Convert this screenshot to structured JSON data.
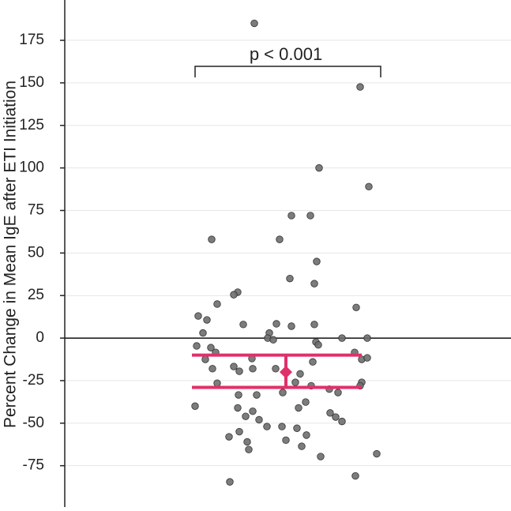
{
  "chart_data": {
    "type": "scatter",
    "y_label": "Percent Change in Mean IgE after ETI Initiation",
    "annotation": "p < 0.001",
    "x": [
      240,
      374,
      385,
      322,
      287,
      311,
      186,
      272,
      319,
      285,
      316,
      219,
      214,
      193,
      369,
      169,
      180,
      226,
      268,
      316,
      287,
      175,
      259,
      257,
      264,
      351,
      383,
      318,
      321,
      167,
      185,
      191,
      367,
      178,
      376,
      383,
      237,
      187,
      214,
      238,
      267,
      314,
      221,
      298,
      193,
      292,
      312,
      376,
      374,
      335,
      346,
      276,
      220,
      243,
      305,
      219,
      296,
      165,
      238,
      229,
      336,
      343,
      246,
      351,
      256,
      275,
      221,
      294,
      306,
      208,
      280,
      231,
      300,
      233,
      324,
      395,
      209,
      368
    ],
    "values": [
      185,
      147.6,
      89,
      100,
      72,
      72,
      58,
      58,
      45,
      35,
      32,
      27,
      25.5,
      20,
      18,
      13,
      10.7,
      8,
      8.4,
      8,
      7,
      3,
      3,
      0,
      -1,
      0,
      0,
      -2.3,
      -4,
      -4.6,
      -5.6,
      -8.4,
      -8.4,
      -12.5,
      -12.5,
      -11.6,
      -12,
      -18,
      -16.7,
      -18,
      -18,
      -14,
      -19.5,
      -21,
      -26.5,
      -26,
      -28,
      -26,
      -28,
      -30,
      -32,
      -32,
      -33.4,
      -33.4,
      -37.6,
      -41,
      -41,
      -40,
      -43,
      -46,
      -44,
      -46.4,
      -48,
      -49,
      -52,
      -52,
      -55,
      -53,
      -57,
      -58,
      -60,
      -61,
      -63.6,
      -65.5,
      -69.6,
      -68,
      -84.5,
      -81
    ],
    "color": "#6e6e6e",
    "mean": {
      "x": 280,
      "value": -20,
      "lower": -29,
      "upper": -10,
      "color": "#e0306a"
    },
    "xlim": [
      0,
      565
    ],
    "ylim": [
      -99.3,
      198.7
    ],
    "yticks": [
      -75,
      -50,
      -25,
      0,
      25,
      50,
      75,
      100,
      125,
      150,
      175
    ],
    "grid": true
  }
}
